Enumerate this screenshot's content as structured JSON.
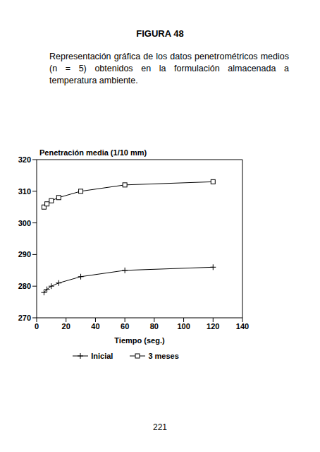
{
  "header": {
    "title": "FIGURA 48",
    "caption": "Representación gráfica de los datos penetrométricos medios (n = 5) obtenidos en la formulación almacenada a temperatura ambiente."
  },
  "chart_data": {
    "type": "line",
    "y_label": "Penetración media (1/10 mm)",
    "x_label": "Tiempo (seg.)",
    "x": [
      5,
      7,
      10,
      15,
      30,
      60,
      120
    ],
    "series": [
      {
        "name": "Inicial",
        "color": "#000000",
        "marker": "plus",
        "values": [
          278,
          279,
          280,
          281,
          283,
          285,
          286
        ]
      },
      {
        "name": "3 meses",
        "color": "#000000",
        "marker": "square",
        "values": [
          305,
          306,
          307,
          308,
          310,
          312,
          313
        ]
      }
    ],
    "xlim": [
      0,
      140
    ],
    "xticks": [
      0,
      20,
      40,
      60,
      80,
      100,
      120,
      140
    ],
    "ylim": [
      270,
      320
    ],
    "yticks": [
      270,
      280,
      290,
      300,
      310,
      320
    ],
    "grid": false,
    "legend": "bottom"
  },
  "page_number": "221"
}
